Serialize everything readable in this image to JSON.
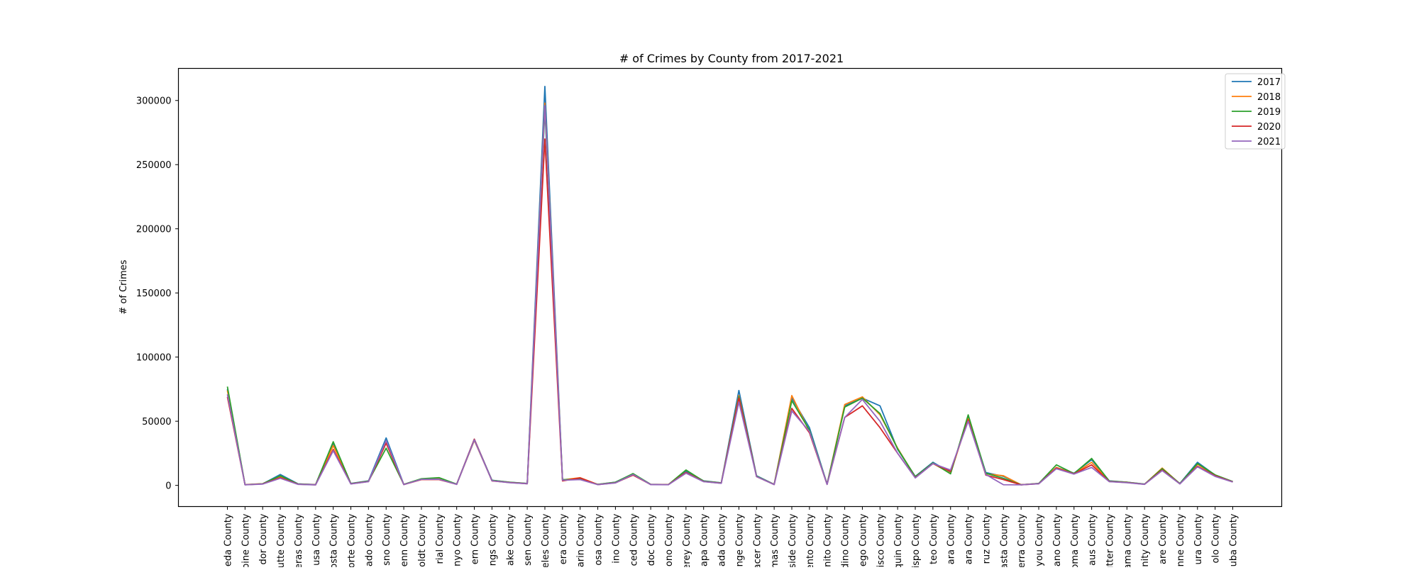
{
  "chart_data": {
    "type": "line",
    "title": "# of Crimes by County from 2017-2021",
    "xlabel": "",
    "ylabel": "# of Crimes",
    "ylim": [
      -16500,
      325000
    ],
    "yticks": [
      0,
      50000,
      100000,
      150000,
      200000,
      250000,
      300000
    ],
    "grid": false,
    "legend_position": "top-right",
    "categories": [
      "eda County",
      "pine County",
      "dor County",
      "utte County",
      "eras County",
      "usa County",
      "osta County",
      "orte County",
      "ado County",
      "sno County",
      "enn County",
      "oldt County",
      "rial County",
      "nyo County",
      "ern County",
      "ngs County",
      "ake County",
      "sen County",
      "eles County",
      "era County",
      "arin County",
      "osa County",
      "ino County",
      "ced County",
      "doc County",
      "ono County",
      "erey County",
      "apa County",
      "ada County",
      "nge County",
      "acer County",
      "mas County",
      "side County",
      "ento County",
      "nito County",
      "dino County",
      "iego County",
      "isco County",
      "quin County",
      "ispo County",
      "teo County",
      "ara County",
      "ara County",
      "ruz County",
      "asta County",
      "erra County",
      "iyou County",
      "ano County",
      "oma County",
      "aus County",
      "utter County",
      "ama County",
      "inity County",
      "are County",
      "nne County",
      "ura County",
      "olo County",
      "uba County"
    ],
    "series": [
      {
        "name": "2017",
        "color": "#1f77b4",
        "values": [
          75000,
          500,
          1200,
          8500,
          1200,
          600,
          33000,
          1500,
          3500,
          37000,
          800,
          5000,
          5500,
          1000,
          36000,
          4000,
          2500,
          1500,
          311000,
          4500,
          5000,
          800,
          2500,
          9000,
          800,
          600,
          11000,
          3500,
          2000,
          74000,
          7500,
          800,
          68000,
          45000,
          1000,
          62000,
          68000,
          62000,
          28000,
          7000,
          18000,
          10000,
          53000,
          10000,
          7000,
          500,
          1500,
          14000,
          9500,
          20000,
          3500,
          2500,
          1000,
          12000,
          1500,
          18000,
          8000,
          3000
        ]
      },
      {
        "name": "2018",
        "color": "#ff7f0e",
        "values": [
          74000,
          600,
          1300,
          7000,
          1000,
          500,
          31000,
          1300,
          3200,
          33000,
          700,
          4800,
          5200,
          900,
          35000,
          3800,
          2300,
          1400,
          298000,
          4300,
          6000,
          700,
          2300,
          9000,
          700,
          600,
          10000,
          3200,
          1800,
          70000,
          7000,
          700,
          70000,
          42000,
          900,
          63000,
          69000,
          55000,
          29000,
          6500,
          17000,
          9500,
          52000,
          9000,
          7500,
          500,
          1400,
          14000,
          9000,
          18000,
          3200,
          2400,
          900,
          13500,
          1300,
          16500,
          8000,
          2800
        ]
      },
      {
        "name": "2019",
        "color": "#2ca02c",
        "values": [
          77000,
          550,
          1250,
          7500,
          1100,
          550,
          34000,
          1400,
          3300,
          29000,
          750,
          5200,
          6000,
          950,
          35500,
          3900,
          2400,
          1450,
          293000,
          4400,
          5000,
          750,
          2400,
          9200,
          750,
          620,
          12000,
          3300,
          1900,
          69000,
          7200,
          750,
          66000,
          43000,
          950,
          61000,
          68000,
          56000,
          28500,
          6800,
          17500,
          9000,
          55000,
          9500,
          5500,
          480,
          1450,
          16000,
          9200,
          21000,
          3300,
          2450,
          950,
          13000,
          1400,
          17000,
          8200,
          2900
        ]
      },
      {
        "name": "2020",
        "color": "#d62728",
        "values": [
          69000,
          500,
          1100,
          6000,
          900,
          450,
          28000,
          1200,
          3000,
          33000,
          650,
          4500,
          4500,
          800,
          36000,
          3500,
          2200,
          1300,
          270000,
          3500,
          5800,
          600,
          2000,
          8000,
          650,
          550,
          10000,
          3000,
          1700,
          68000,
          6800,
          650,
          60000,
          41000,
          800,
          53000,
          62000,
          45000,
          25000,
          6000,
          17000,
          11000,
          51000,
          8000,
          4500,
          450,
          1300,
          13500,
          9000,
          16000,
          3000,
          2200,
          850,
          12000,
          1200,
          15000,
          7500,
          2700
        ]
      },
      {
        "name": "2021",
        "color": "#9467bd",
        "values": [
          71000,
          450,
          1000,
          5500,
          800,
          400,
          27000,
          1100,
          2900,
          35000,
          600,
          4700,
          4800,
          750,
          35500,
          3600,
          2100,
          1250,
          296000,
          4000,
          4500,
          550,
          1900,
          8500,
          600,
          500,
          9500,
          2900,
          1600,
          65000,
          6900,
          600,
          58000,
          42000,
          750,
          53000,
          67000,
          50000,
          25000,
          5800,
          17000,
          12000,
          50000,
          8500,
          500,
          420,
          1250,
          13000,
          8800,
          14000,
          2900,
          2100,
          800,
          11500,
          1150,
          14500,
          7000,
          2600
        ]
      }
    ]
  }
}
